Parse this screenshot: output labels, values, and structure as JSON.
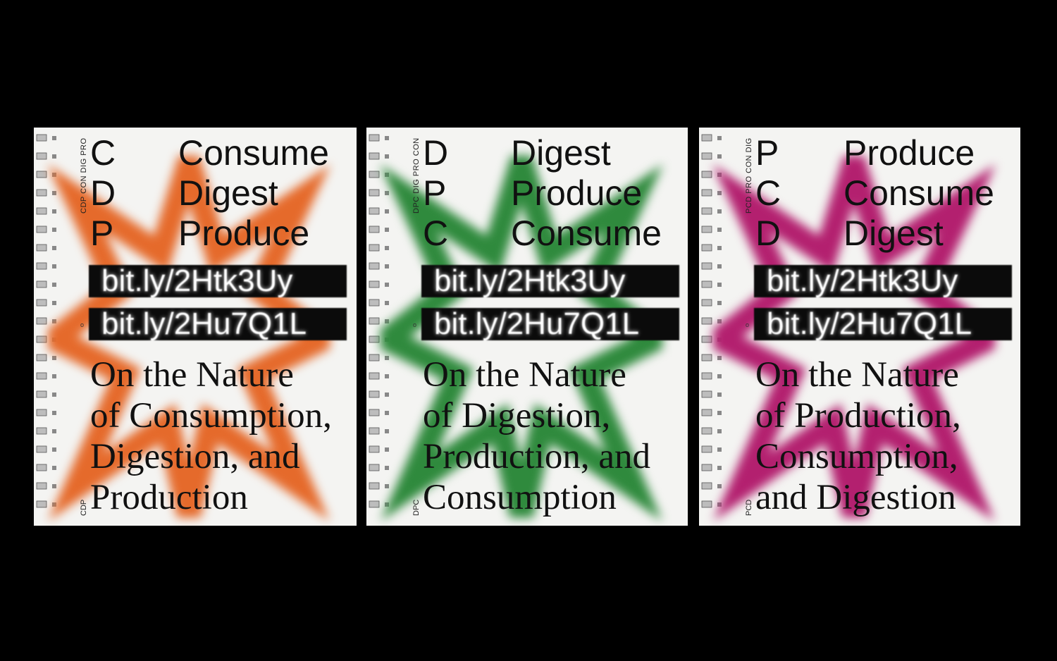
{
  "covers": [
    {
      "accent": "#e56a2b",
      "side_top": "CDP CON DIG PRO",
      "side_mark": "o",
      "side_bottom": "CDP",
      "letters": [
        "C",
        "D",
        "P"
      ],
      "words": [
        "Consume",
        "Digest",
        "Produce"
      ],
      "links": [
        "bit.ly/2Htk3Uy",
        "bit.ly/2Hu7Q1L"
      ],
      "title_lines": [
        "On the Nature",
        "of Consumption,",
        "Digestion, and",
        "Production"
      ]
    },
    {
      "accent": "#2f8a3d",
      "side_top": "DPC DIG PRO CON",
      "side_mark": "o",
      "side_bottom": "DPC",
      "letters": [
        "D",
        "P",
        "C"
      ],
      "words": [
        "Digest",
        "Produce",
        "Consume"
      ],
      "links": [
        "bit.ly/2Htk3Uy",
        "bit.ly/2Hu7Q1L"
      ],
      "title_lines": [
        "On the Nature",
        "of Digestion,",
        "Production, and",
        "Consumption"
      ]
    },
    {
      "accent": "#b3206f",
      "side_top": "PCD PRO CON DIG",
      "side_mark": "o",
      "side_bottom": "PCD",
      "letters": [
        "P",
        "C",
        "D"
      ],
      "words": [
        "Produce",
        "Consume",
        "Digest"
      ],
      "links": [
        "bit.ly/2Htk3Uy",
        "bit.ly/2Hu7Q1L"
      ],
      "title_lines": [
        "On the Nature",
        "of Production,",
        "Consumption,",
        "and Digestion"
      ]
    }
  ]
}
